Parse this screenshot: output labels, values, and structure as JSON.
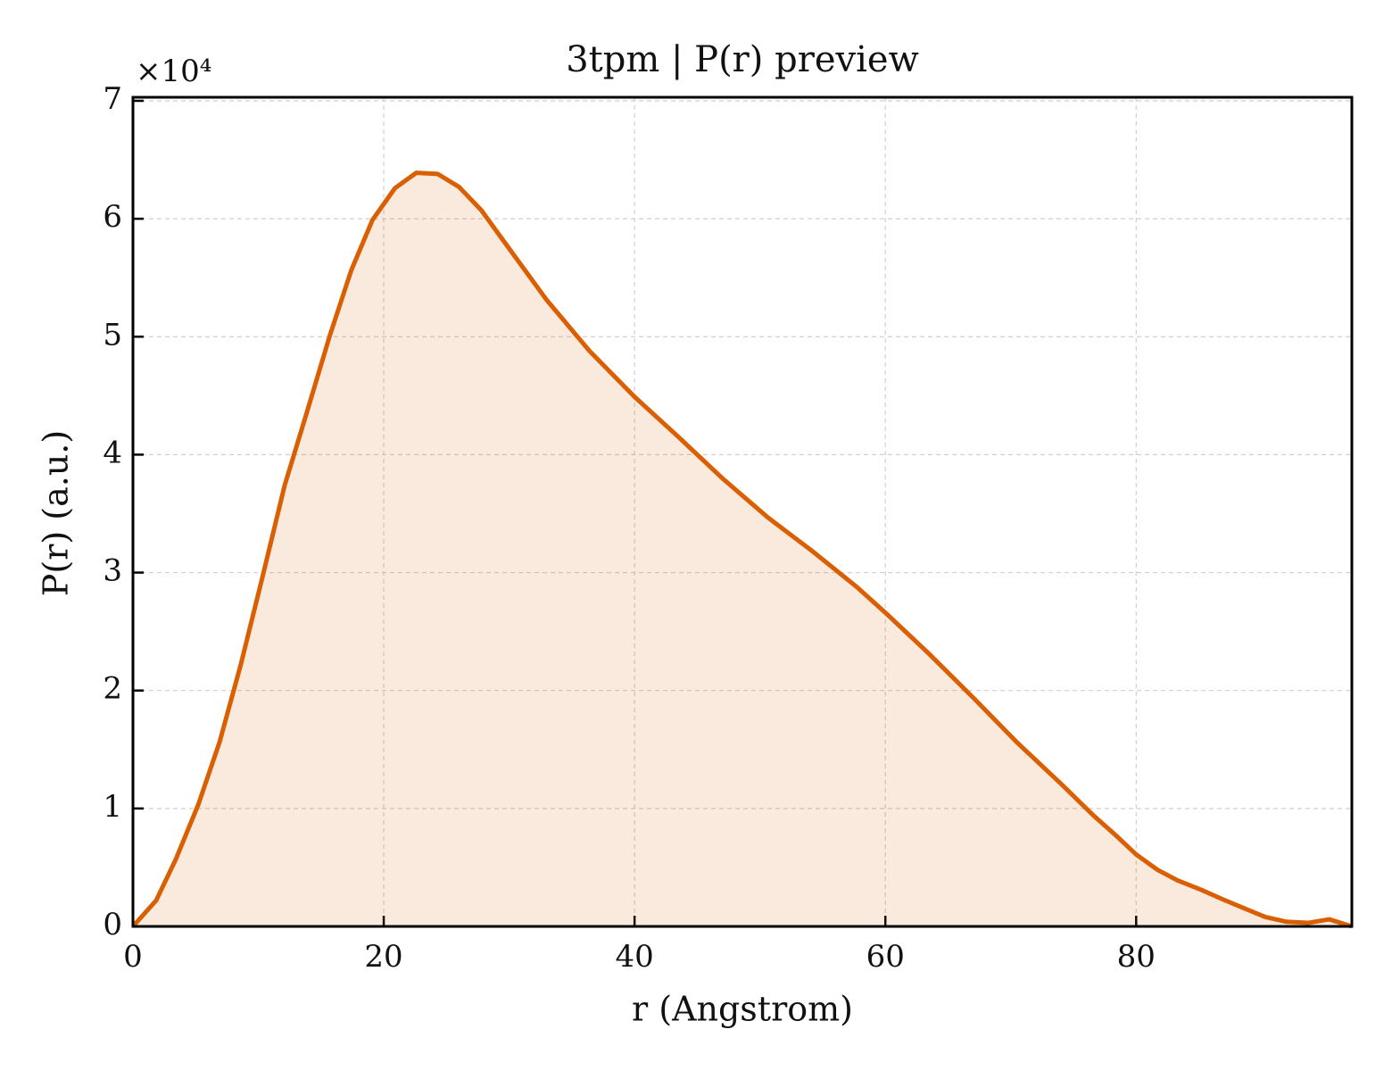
{
  "chart_data": {
    "type": "line",
    "title": "3tpm | P(r) preview",
    "xlabel": "r (Angstrom)",
    "ylabel": "P(r) (a.u.)",
    "y_offset_label": "×10⁴",
    "x": [
      0,
      1.85,
      3.42,
      5.2,
      6.9,
      8.6,
      10.3,
      12.1,
      13.9,
      15.7,
      17.4,
      19.1,
      20.9,
      22.6,
      24.3,
      26.0,
      27.8,
      29.5,
      33.0,
      36.4,
      40.0,
      43.5,
      47.0,
      50.6,
      54.2,
      57.7,
      60.0,
      63.4,
      67.0,
      70.5,
      74.1,
      76.6,
      78.4,
      80.0,
      81.7,
      83.3,
      85.2,
      86.9,
      88.7,
      90.3,
      91.96,
      93.7,
      95.4,
      97.2
    ],
    "series": [
      {
        "name": "P(r)",
        "color": "#d95f02",
        "values": [
          0,
          0.22,
          0.57,
          1.03,
          1.56,
          2.22,
          2.95,
          3.74,
          4.37,
          5.01,
          5.56,
          5.99,
          6.26,
          6.39,
          6.38,
          6.27,
          6.07,
          5.82,
          5.31,
          4.88,
          4.49,
          4.15,
          3.8,
          3.47,
          3.18,
          2.88,
          2.66,
          2.32,
          1.94,
          1.56,
          1.2,
          0.94,
          0.77,
          0.61,
          0.48,
          0.39,
          0.31,
          0.23,
          0.15,
          0.08,
          0.04,
          0.03,
          0.06,
          0
        ]
      }
    ],
    "fill": true,
    "xlim": [
      0,
      97.2
    ],
    "ylim": [
      0,
      7.03
    ],
    "xticks": [
      0,
      20,
      40,
      60,
      80
    ],
    "yticks": [
      0,
      1,
      2,
      3,
      4,
      5,
      6,
      7
    ],
    "grid": true
  }
}
